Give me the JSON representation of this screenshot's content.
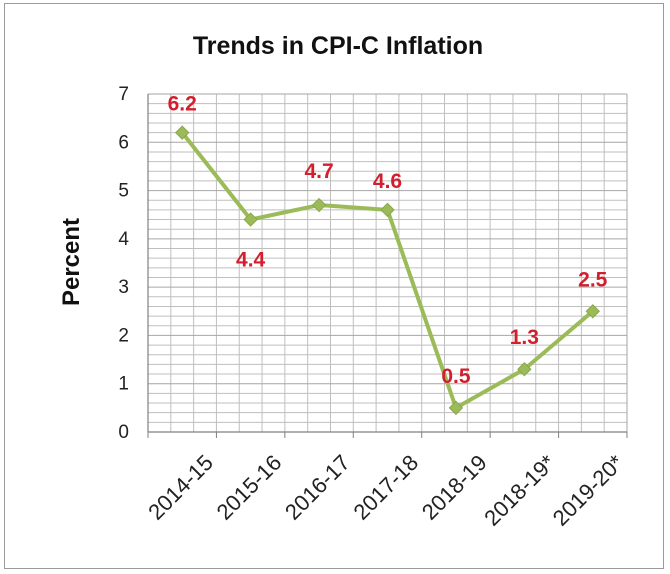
{
  "chart_data": {
    "type": "line",
    "title": "Trends  in CPI-C Inflation",
    "ylabel": "Percent",
    "xlabel": "",
    "categories": [
      "2014-15",
      "2015-16",
      "2016-17",
      "2017-18",
      "2018-19",
      "2018-19*",
      "2019-20*"
    ],
    "values": [
      6.2,
      4.4,
      4.7,
      4.6,
      0.5,
      1.3,
      2.5
    ],
    "data_labels": [
      "6.2",
      "4.4",
      "4.7",
      "4.6",
      "0.5",
      "1.3",
      "2.5"
    ],
    "ylim": [
      0,
      7
    ],
    "yticks": [
      "0",
      "1",
      "2",
      "3",
      "4",
      "5",
      "6",
      "7"
    ],
    "grid": true,
    "legend": "none",
    "colors": {
      "line": "#9bbb59",
      "marker": "#9bbb59",
      "data_label": "#d21f2d",
      "grid": "#bfbfbf"
    }
  }
}
